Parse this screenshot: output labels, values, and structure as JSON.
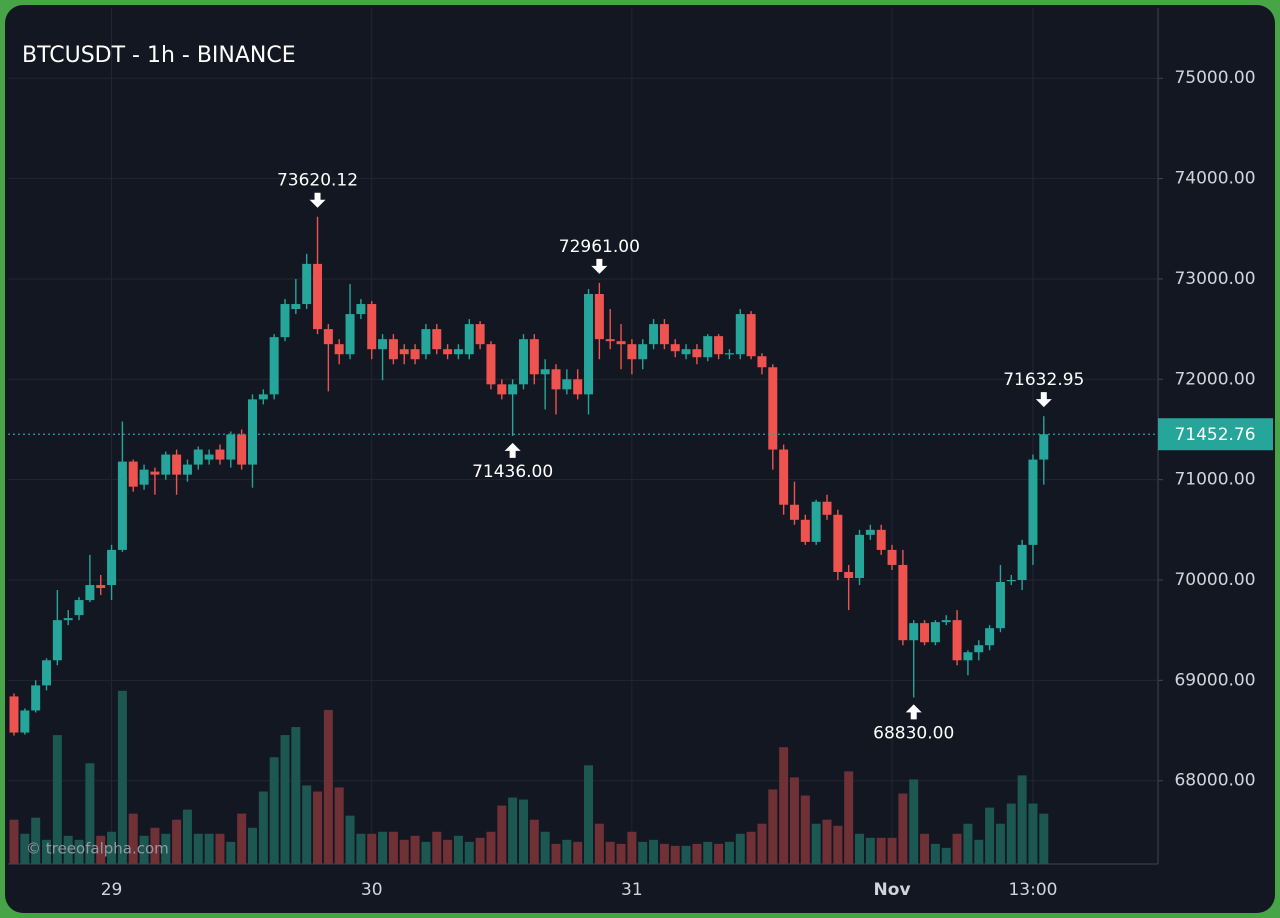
{
  "chart_data": {
    "type": "candlestick",
    "title": "BTCUSDT - 1h - BINANCE",
    "watermark": "© treeofalpha.com",
    "categories": [
      null,
      null,
      null,
      null,
      null,
      null,
      null,
      null,
      null,
      "29",
      null,
      null,
      null,
      null,
      null,
      null,
      null,
      null,
      null,
      null,
      null,
      null,
      null,
      null,
      null,
      null,
      null,
      null,
      null,
      null,
      null,
      null,
      null,
      "30",
      null,
      null,
      null,
      null,
      null,
      null,
      null,
      null,
      null,
      null,
      null,
      null,
      null,
      null,
      null,
      null,
      null,
      null,
      null,
      null,
      null,
      null,
      null,
      "31",
      null,
      null,
      null,
      null,
      null,
      null,
      null,
      null,
      null,
      null,
      null,
      null,
      null,
      null,
      null,
      null,
      null,
      null,
      null,
      null,
      null,
      null,
      null,
      "Nov",
      null,
      null,
      null,
      null,
      null,
      null,
      null,
      null,
      null,
      null,
      null,
      null,
      "13:00",
      null
    ],
    "open": [
      68840,
      68480,
      68700,
      68950,
      69200,
      69600,
      69650,
      69800,
      69950,
      69950,
      70300,
      71180,
      70950,
      71080,
      71050,
      71250,
      71050,
      71150,
      71200,
      71300,
      71200,
      71450,
      71150,
      71800,
      71850,
      72420,
      72700,
      72750,
      73150,
      72500,
      72350,
      72250,
      72650,
      72750,
      72300,
      72400,
      72300,
      72300,
      72250,
      72500,
      72300,
      72250,
      72250,
      72550,
      72350,
      71950,
      71850,
      71950,
      72400,
      72050,
      72100,
      71900,
      72000,
      71850,
      72850,
      72400,
      72380,
      72350,
      72200,
      72350,
      72550,
      72350,
      72250,
      72300,
      72220,
      72430,
      72250,
      72250,
      72650,
      72230,
      72120,
      71300,
      70750,
      70600,
      70380,
      70780,
      70650,
      70080,
      70020,
      70450,
      70500,
      70300,
      70150,
      69400,
      69570,
      69380,
      69580,
      69600,
      69200,
      69280,
      69350,
      69520,
      69990,
      70000,
      70350,
      71200
    ],
    "high": [
      68870,
      68720,
      69000,
      69220,
      69900,
      69700,
      69830,
      70250,
      70050,
      70350,
      71580,
      71200,
      71150,
      71120,
      71280,
      71300,
      71200,
      71330,
      71300,
      71350,
      71480,
      71500,
      71850,
      71900,
      72450,
      72800,
      73000,
      73250,
      73620.12,
      72550,
      72400,
      72950,
      72800,
      72780,
      72450,
      72450,
      72350,
      72350,
      72550,
      72550,
      72350,
      72350,
      72600,
      72580,
      72380,
      72000,
      72000,
      72450,
      72450,
      72200,
      72150,
      72100,
      72100,
      72900,
      72961,
      72700,
      72550,
      72400,
      72400,
      72600,
      72600,
      72400,
      72350,
      72350,
      72450,
      72450,
      72300,
      72700,
      72680,
      72260,
      72150,
      71350,
      70980,
      70650,
      70800,
      70850,
      70700,
      70150,
      70500,
      70550,
      70550,
      70350,
      70300,
      69600,
      69600,
      69600,
      69650,
      69700,
      69300,
      69400,
      69550,
      70150,
      70050,
      70400,
      71250,
      71632.95
    ],
    "low": [
      68450,
      68460,
      68680,
      68900,
      69150,
      69550,
      69600,
      69780,
      69850,
      69800,
      70280,
      70880,
      70900,
      70850,
      71000,
      70850,
      70980,
      71100,
      71150,
      71150,
      71120,
      71100,
      70920,
      71750,
      71800,
      72380,
      72650,
      72700,
      72450,
      71880,
      72150,
      72200,
      72600,
      72200,
      71990,
      72150,
      72150,
      72150,
      72200,
      72250,
      72200,
      72200,
      72200,
      72300,
      71900,
      71800,
      71436,
      71900,
      71950,
      71700,
      71650,
      71850,
      71800,
      71650,
      72200,
      72300,
      72100,
      72050,
      72100,
      72300,
      72300,
      72220,
      72200,
      72150,
      72180,
      72200,
      72200,
      72200,
      72200,
      72050,
      71100,
      70650,
      70550,
      70350,
      70350,
      70600,
      70000,
      69700,
      69950,
      70400,
      70250,
      70100,
      69350,
      68830,
      69350,
      69350,
      69550,
      69150,
      69050,
      69200,
      69300,
      69480,
      69950,
      69900,
      70150,
      70950
    ],
    "close": [
      68480,
      68700,
      68950,
      69200,
      69600,
      69620,
      69800,
      69950,
      69920,
      70300,
      71180,
      70930,
      71100,
      71050,
      71250,
      71050,
      71150,
      71300,
      71250,
      71200,
      71450,
      71150,
      71800,
      71850,
      72420,
      72750,
      72750,
      73150,
      72500,
      72350,
      72250,
      72650,
      72750,
      72300,
      72400,
      72200,
      72250,
      72200,
      72500,
      72300,
      72250,
      72300,
      72550,
      72350,
      71950,
      71850,
      71950,
      72400,
      72050,
      72100,
      71900,
      72000,
      71850,
      72850,
      72400,
      72380,
      72350,
      72200,
      72350,
      72550,
      72350,
      72280,
      72300,
      72220,
      72430,
      72250,
      72260,
      72650,
      72230,
      72120,
      71300,
      70750,
      70600,
      70380,
      70780,
      70650,
      70080,
      70020,
      70450,
      70500,
      70300,
      70150,
      69400,
      69570,
      69380,
      69580,
      69600,
      69200,
      69280,
      69350,
      69520,
      69980,
      70000,
      70350,
      71200,
      71452.76
    ],
    "volume": [
      44,
      30,
      46,
      24,
      128,
      28,
      24,
      100,
      28,
      32,
      172,
      50,
      28,
      36,
      30,
      44,
      54,
      30,
      30,
      30,
      22,
      50,
      36,
      72,
      106,
      128,
      136,
      78,
      72,
      153,
      76,
      48,
      30,
      30,
      32,
      32,
      24,
      28,
      22,
      32,
      24,
      28,
      22,
      26,
      32,
      58,
      66,
      64,
      44,
      32,
      20,
      24,
      22,
      98,
      40,
      22,
      20,
      32,
      22,
      24,
      20,
      18,
      18,
      20,
      22,
      20,
      22,
      30,
      32,
      40,
      74,
      116,
      86,
      68,
      40,
      44,
      38,
      92,
      30,
      26,
      26,
      26,
      70,
      84,
      30,
      20,
      16,
      30,
      40,
      24,
      56,
      40,
      60,
      88,
      60,
      50
    ],
    "volume_ylim": [
      0,
      850
    ],
    "high_labels": [
      null,
      null,
      null,
      null,
      null,
      null,
      null,
      null,
      null,
      null,
      null,
      null,
      null,
      null,
      null,
      null,
      null,
      null,
      null,
      null,
      null,
      null,
      null,
      null,
      null,
      null,
      null,
      null,
      "73620.12",
      null,
      null,
      null,
      null,
      null,
      null,
      null,
      null,
      null,
      null,
      null,
      null,
      null,
      null,
      null,
      null,
      null,
      null,
      null,
      null,
      null,
      null,
      null,
      null,
      null,
      "72961.00",
      null,
      null,
      null,
      null,
      null,
      null,
      null,
      null,
      null,
      null,
      null,
      null,
      null,
      null,
      null,
      null,
      null,
      null,
      null,
      null,
      null,
      null,
      null,
      null,
      null,
      null,
      null,
      null,
      null,
      null,
      null,
      null,
      null,
      null,
      null,
      null,
      null,
      null,
      null,
      null,
      "71632.95"
    ],
    "low_labels": [
      null,
      null,
      null,
      null,
      null,
      null,
      null,
      null,
      null,
      null,
      null,
      null,
      null,
      null,
      null,
      null,
      null,
      null,
      null,
      null,
      null,
      null,
      null,
      null,
      null,
      null,
      null,
      null,
      null,
      null,
      null,
      null,
      null,
      null,
      null,
      null,
      null,
      null,
      null,
      null,
      null,
      null,
      null,
      null,
      null,
      null,
      "71436.00",
      null,
      null,
      null,
      null,
      null,
      null,
      null,
      null,
      null,
      null,
      null,
      null,
      null,
      null,
      null,
      null,
      null,
      null,
      null,
      null,
      null,
      null,
      null,
      null,
      null,
      null,
      null,
      null,
      null,
      null,
      null,
      null,
      null,
      null,
      null,
      null,
      "68830.00",
      null,
      null,
      null,
      null,
      null,
      null,
      null,
      null,
      null,
      null,
      null,
      null
    ],
    "ylim": [
      67170,
      75700
    ],
    "yticks": [
      {
        "value": 68000,
        "label": "68000.00"
      },
      {
        "value": 69000,
        "label": "69000.00"
      },
      {
        "value": 70000,
        "label": "70000.00"
      },
      {
        "value": 71000,
        "label": "71000.00"
      },
      {
        "value": 72000,
        "label": "72000.00"
      },
      {
        "value": 73000,
        "label": "73000.00"
      },
      {
        "value": 74000,
        "label": "74000.00"
      },
      {
        "value": 75000,
        "label": "75000.00"
      }
    ],
    "grid": true,
    "up_color": "#26a69a",
    "down_color": "#ef5350",
    "volume_up_color": "#1c5752",
    "volume_down_color": "#6f3036",
    "last_price_color": "#26a69a"
  }
}
